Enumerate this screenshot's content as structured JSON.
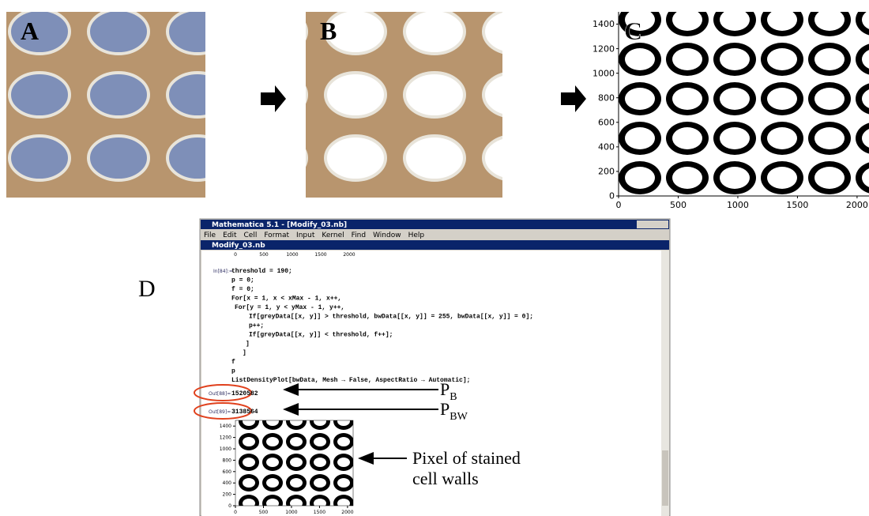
{
  "panels": {
    "a": {
      "label": "A"
    },
    "b": {
      "label": "B"
    },
    "c": {
      "label": "C",
      "ylim": [
        0,
        1500
      ],
      "yticks": [
        0,
        200,
        400,
        600,
        800,
        1000,
        1200,
        1400
      ],
      "xlim": [
        0,
        2100
      ],
      "xticks": [
        0,
        500,
        1000,
        1500,
        2000
      ]
    },
    "d": {
      "label": "D"
    }
  },
  "window": {
    "title": "Mathematica 5.1 - [Modify_03.nb]",
    "menu": [
      "File",
      "Edit",
      "Cell",
      "Format",
      "Input",
      "Kernel",
      "Find",
      "Window",
      "Help"
    ],
    "notebook_title": "Modify_03.nb",
    "top_ticks": [
      0,
      500,
      1000,
      1500,
      2000
    ],
    "input_label": "In[84]:=",
    "code": [
      "threshold = 190;",
      "p = 0;",
      "f = 0;",
      "For[x = 1, x < xMax - 1, x++,",
      "For[y = 1, y < yMax - 1, y++,",
      "If[greyData[[x, y]] > threshold, bwData[[x, y]] = 255, bwData[[x, y]] = 0];",
      "p++;",
      "If[greyData[[x, y]] < threshold, f++];",
      "]",
      "]",
      "f",
      "p",
      "ListDensityPlot[bwData, Mesh → False, AspectRatio → Automatic];"
    ],
    "outputs": [
      {
        "label": "Out[88]=",
        "value": "1520582"
      },
      {
        "label": "Out[89]=",
        "value": "3138564"
      }
    ],
    "plot": {
      "ylim": [
        0,
        1500
      ],
      "yticks": [
        0,
        200,
        400,
        600,
        800,
        1000,
        1200,
        1400
      ],
      "xlim": [
        0,
        2100
      ],
      "xticks": [
        0,
        500,
        1000,
        1500,
        2000
      ]
    }
  },
  "annotations": {
    "pb": {
      "main": "P",
      "sub": "B"
    },
    "pbw": {
      "main": "P",
      "sub": "BW"
    },
    "pixel": [
      "Pixel of stained",
      "cell walls"
    ]
  }
}
